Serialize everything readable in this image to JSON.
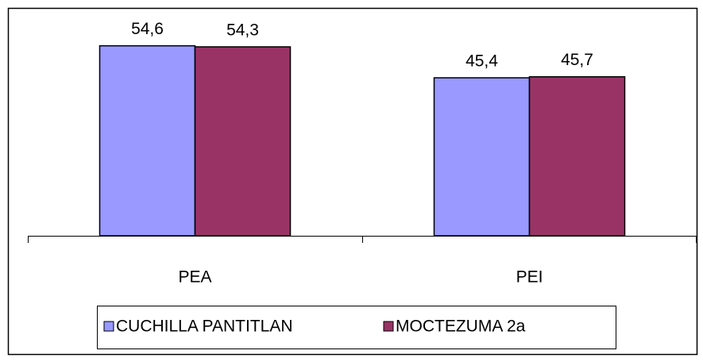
{
  "chart_data": {
    "type": "bar",
    "categories": [
      "PEA",
      "PEI"
    ],
    "series": [
      {
        "name": "CUCHILLA PANTITLAN",
        "color": "#9999ff",
        "values": [
          54.6,
          45.4
        ],
        "value_labels": [
          "54,6",
          "45,4"
        ]
      },
      {
        "name": "MOCTEZUMA 2a",
        "color": "#993366",
        "values": [
          54.3,
          45.7
        ],
        "value_labels": [
          "54,3",
          "45,7"
        ]
      }
    ],
    "ylim": [
      0,
      60
    ],
    "legend": "bottom"
  }
}
